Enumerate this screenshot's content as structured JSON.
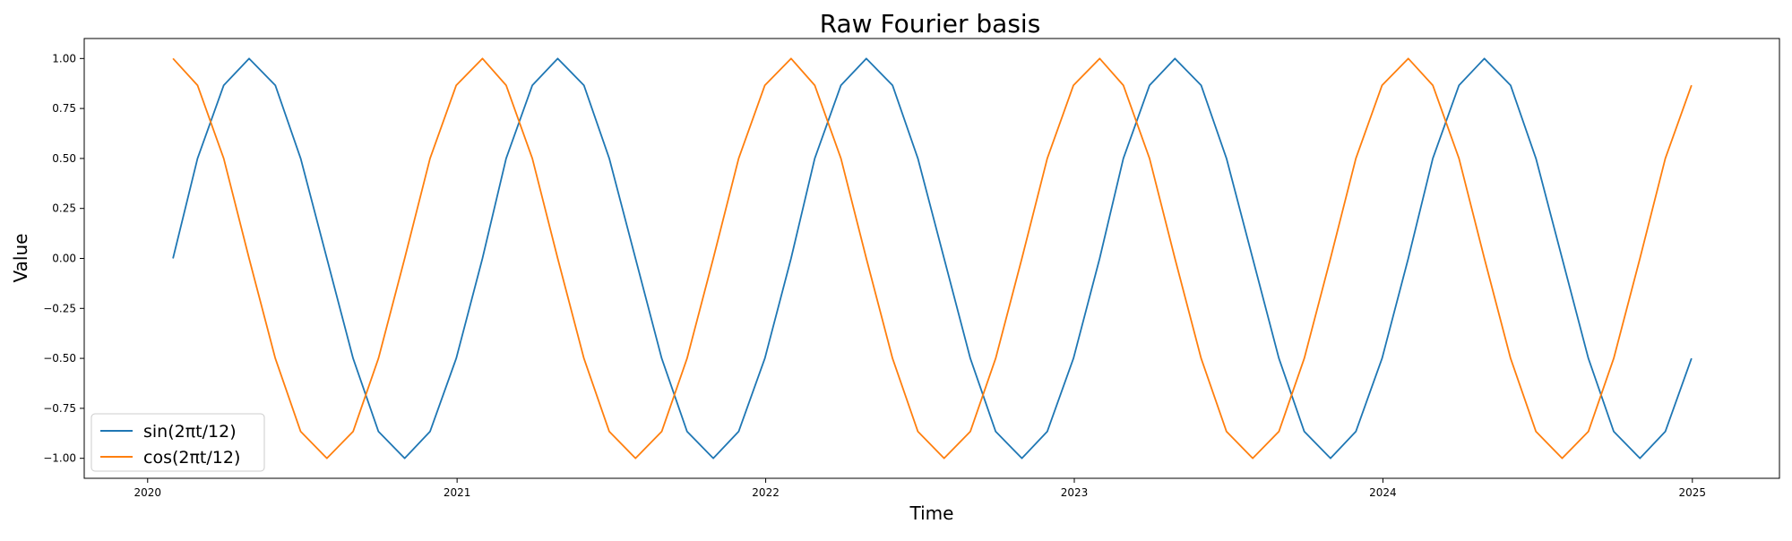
{
  "chart_data": {
    "type": "line",
    "title": "Raw Fourier basis",
    "xlabel": "Time",
    "ylabel": "Value",
    "x_ticks": [
      "2020",
      "2021",
      "2022",
      "2023",
      "2024",
      "2025"
    ],
    "y_ticks": [
      "1.00",
      "0.75",
      "0.50",
      "0.25",
      "0.00",
      "−0.25",
      "−0.50",
      "−0.75",
      "−1.00"
    ],
    "xlim": [
      "2019-10-18",
      "2025-04-14"
    ],
    "ylim": [
      -1.1,
      1.1
    ],
    "grid": false,
    "legend_position": "lower-left",
    "x_dates": [
      "2020-01-31",
      "2020-02-29",
      "2020-03-31",
      "2020-04-30",
      "2020-05-31",
      "2020-06-30",
      "2020-07-31",
      "2020-08-31",
      "2020-09-30",
      "2020-10-31",
      "2020-11-30",
      "2020-12-31",
      "2021-01-31",
      "2021-02-28",
      "2021-03-31",
      "2021-04-30",
      "2021-05-31",
      "2021-06-30",
      "2021-07-31",
      "2021-08-31",
      "2021-09-30",
      "2021-10-31",
      "2021-11-30",
      "2021-12-31",
      "2022-01-31",
      "2022-02-28",
      "2022-03-31",
      "2022-04-30",
      "2022-05-31",
      "2022-06-30",
      "2022-07-31",
      "2022-08-31",
      "2022-09-30",
      "2022-10-31",
      "2022-11-30",
      "2022-12-31",
      "2023-01-31",
      "2023-02-28",
      "2023-03-31",
      "2023-04-30",
      "2023-05-31",
      "2023-06-30",
      "2023-07-31",
      "2023-08-31",
      "2023-09-30",
      "2023-10-31",
      "2023-11-30",
      "2023-12-31",
      "2024-01-31",
      "2024-02-29",
      "2024-03-31",
      "2024-04-30",
      "2024-05-31",
      "2024-06-30",
      "2024-07-31",
      "2024-08-31",
      "2024-09-30",
      "2024-10-31",
      "2024-11-30",
      "2024-12-31"
    ],
    "series": [
      {
        "name": "sin(2πt/12)",
        "color": "#1f77b4",
        "values": [
          0.0,
          0.5,
          0.866,
          1.0,
          0.866,
          0.5,
          0.0,
          -0.5,
          -0.866,
          -1.0,
          -0.866,
          -0.5,
          0.0,
          0.5,
          0.866,
          1.0,
          0.866,
          0.5,
          0.0,
          -0.5,
          -0.866,
          -1.0,
          -0.866,
          -0.5,
          0.0,
          0.5,
          0.866,
          1.0,
          0.866,
          0.5,
          0.0,
          -0.5,
          -0.866,
          -1.0,
          -0.866,
          -0.5,
          0.0,
          0.5,
          0.866,
          1.0,
          0.866,
          0.5,
          0.0,
          -0.5,
          -0.866,
          -1.0,
          -0.866,
          -0.5,
          0.0,
          0.5,
          0.866,
          1.0,
          0.866,
          0.5,
          0.0,
          -0.5,
          -0.866,
          -1.0,
          -0.866,
          -0.5
        ]
      },
      {
        "name": "cos(2πt/12)",
        "color": "#ff7f0e",
        "values": [
          1.0,
          0.866,
          0.5,
          0.0,
          -0.5,
          -0.866,
          -1.0,
          -0.866,
          -0.5,
          0.0,
          0.5,
          0.866,
          1.0,
          0.866,
          0.5,
          0.0,
          -0.5,
          -0.866,
          -1.0,
          -0.866,
          -0.5,
          0.0,
          0.5,
          0.866,
          1.0,
          0.866,
          0.5,
          0.0,
          -0.5,
          -0.866,
          -1.0,
          -0.866,
          -0.5,
          0.0,
          0.5,
          0.866,
          1.0,
          0.866,
          0.5,
          0.0,
          -0.5,
          -0.866,
          -1.0,
          -0.866,
          -0.5,
          0.0,
          0.5,
          0.866,
          1.0,
          0.866,
          0.5,
          0.0,
          -0.5,
          -0.866,
          -1.0,
          -0.866,
          -0.5,
          0.0,
          0.5,
          0.866
        ]
      }
    ]
  }
}
